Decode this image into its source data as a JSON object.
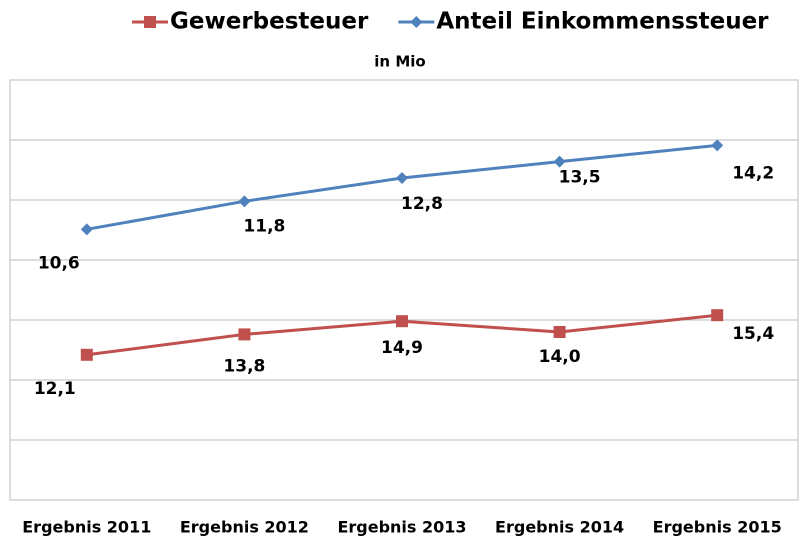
{
  "chart_data": {
    "type": "line",
    "subtitle": "in Mio",
    "categories": [
      "Ergebnis 2011",
      "Ergebnis 2012",
      "Ergebnis 2013",
      "Ergebnis 2014",
      "Ergebnis 2015"
    ],
    "series": [
      {
        "name": "Gewerbesteuer",
        "color": "#c0504d",
        "values": [
          12.1,
          13.8,
          14.9,
          14.0,
          15.4
        ],
        "value_labels": [
          "12,1",
          "13,8",
          "14,9",
          "14,0",
          "15,4"
        ]
      },
      {
        "name": "Anteil Einkommenssteuer",
        "color": "#4f81bd",
        "axis": "y2",
        "values": [
          10.6,
          11.8,
          12.8,
          13.5,
          14.2
        ],
        "value_labels": [
          "10,6",
          "11,8",
          "12,8",
          "13,5",
          "14,2"
        ]
      }
    ],
    "ylim": [
      0,
      35
    ],
    "yticks": [
      0,
      5,
      10,
      15,
      20,
      25,
      30,
      35
    ],
    "y2lim": [
      -1,
      17
    ],
    "grid": true
  }
}
